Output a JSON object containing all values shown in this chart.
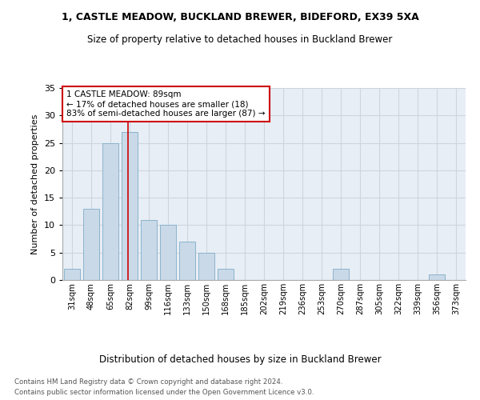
{
  "title_line1": "1, CASTLE MEADOW, BUCKLAND BREWER, BIDEFORD, EX39 5XA",
  "title_line2": "Size of property relative to detached houses in Buckland Brewer",
  "xlabel": "Distribution of detached houses by size in Buckland Brewer",
  "ylabel": "Number of detached properties",
  "categories": [
    "31sqm",
    "48sqm",
    "65sqm",
    "82sqm",
    "99sqm",
    "116sqm",
    "133sqm",
    "150sqm",
    "168sqm",
    "185sqm",
    "202sqm",
    "219sqm",
    "236sqm",
    "253sqm",
    "270sqm",
    "287sqm",
    "305sqm",
    "322sqm",
    "339sqm",
    "356sqm",
    "373sqm"
  ],
  "values": [
    2,
    13,
    25,
    27,
    11,
    10,
    7,
    5,
    2,
    0,
    0,
    0,
    0,
    0,
    2,
    0,
    0,
    0,
    0,
    1,
    0
  ],
  "bar_color": "#c9d9e8",
  "bar_edge_color": "#8ab4cc",
  "vline_x_idx": 3,
  "vline_color": "#cc0000",
  "annotation_text": "1 CASTLE MEADOW: 89sqm\n← 17% of detached houses are smaller (18)\n83% of semi-detached houses are larger (87) →",
  "annotation_box_color": "#ffffff",
  "annotation_box_edgecolor": "#cc0000",
  "ylim": [
    0,
    35
  ],
  "yticks": [
    0,
    5,
    10,
    15,
    20,
    25,
    30,
    35
  ],
  "grid_color": "#cdd5e0",
  "background_color": "#e8eef5",
  "footer_line1": "Contains HM Land Registry data © Crown copyright and database right 2024.",
  "footer_line2": "Contains public sector information licensed under the Open Government Licence v3.0."
}
